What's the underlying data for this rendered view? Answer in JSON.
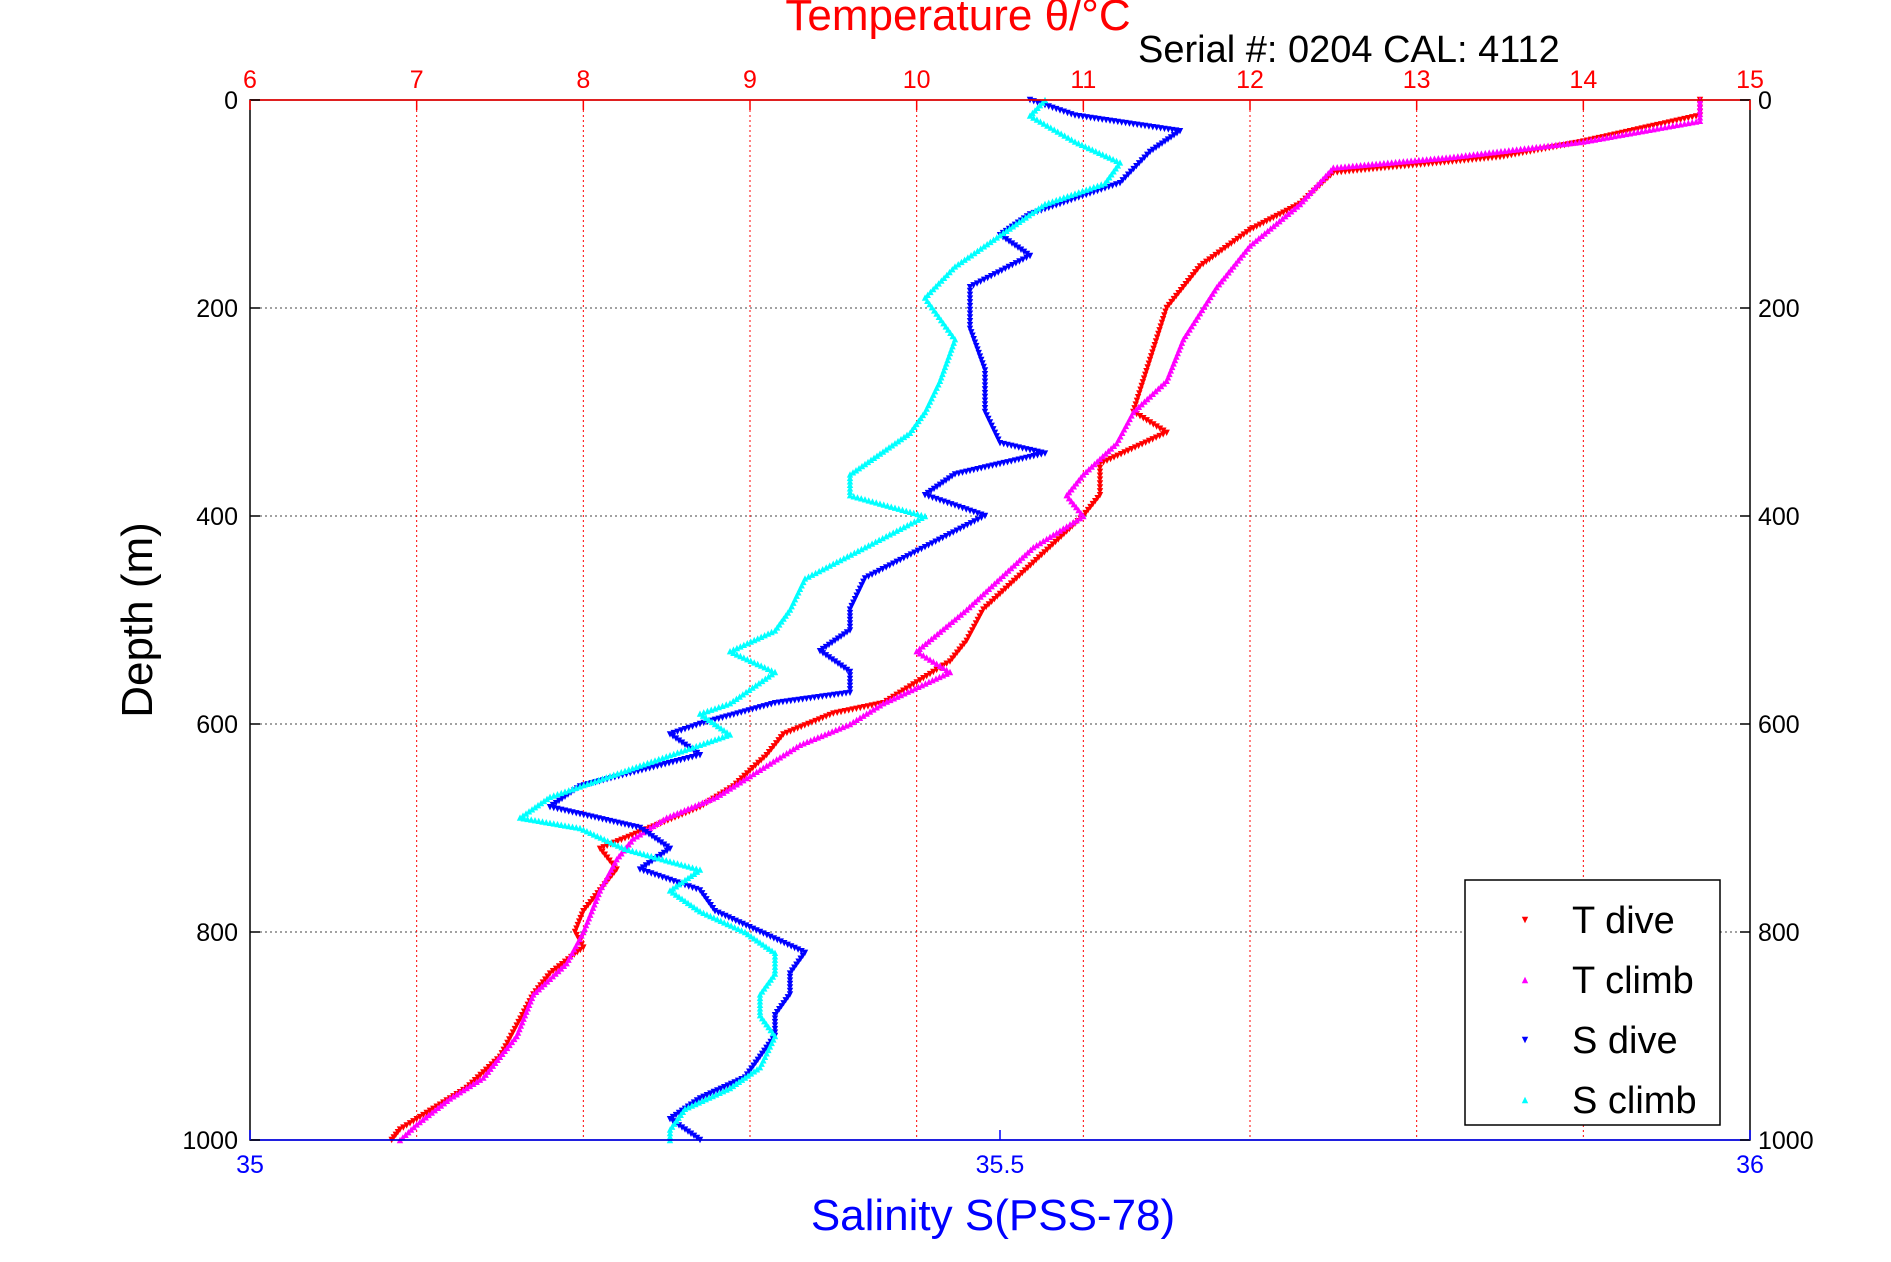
{
  "chart_data": {
    "type": "scatter",
    "title": "Temperature θ/°C",
    "annotation": "Serial #: 0204  CAL: 4112",
    "ylabel": "Depth (m)",
    "xlabel_bottom": "Salinity S(PSS-78)",
    "y_ticks": [
      "0",
      "200",
      "400",
      "600",
      "800",
      "1000"
    ],
    "x_top_ticks": [
      "6",
      "7",
      "8",
      "9",
      "10",
      "11",
      "12",
      "13",
      "14",
      "15"
    ],
    "x_bottom_ticks": [
      "35",
      "35.5",
      "36"
    ],
    "ylim": [
      0,
      1000
    ],
    "y_reversed": true,
    "x_top_lim": [
      6,
      15
    ],
    "x_bottom_lim": [
      35,
      36
    ],
    "grid": true,
    "legend_position": "bottom-right",
    "colors": {
      "temperature_axis": "#ff0000",
      "salinity_axis": "#0000ff"
    },
    "series": [
      {
        "name": "T dive",
        "axis": "top",
        "color": "#ff0000",
        "points": [
          [
            14.7,
            0
          ],
          [
            14.7,
            15
          ],
          [
            14.0,
            40
          ],
          [
            13.5,
            55
          ],
          [
            12.5,
            70
          ],
          [
            12.3,
            100
          ],
          [
            12.0,
            125
          ],
          [
            11.7,
            160
          ],
          [
            11.5,
            200
          ],
          [
            11.4,
            250
          ],
          [
            11.3,
            300
          ],
          [
            11.5,
            320
          ],
          [
            11.1,
            350
          ],
          [
            11.1,
            380
          ],
          [
            11.0,
            400
          ],
          [
            10.8,
            430
          ],
          [
            10.6,
            460
          ],
          [
            10.4,
            490
          ],
          [
            10.3,
            520
          ],
          [
            10.2,
            540
          ],
          [
            10.0,
            560
          ],
          [
            9.8,
            580
          ],
          [
            9.5,
            590
          ],
          [
            9.2,
            610
          ],
          [
            9.1,
            630
          ],
          [
            8.9,
            660
          ],
          [
            8.7,
            680
          ],
          [
            8.4,
            700
          ],
          [
            8.1,
            720
          ],
          [
            8.2,
            740
          ],
          [
            8.1,
            760
          ],
          [
            8.0,
            780
          ],
          [
            7.95,
            800
          ],
          [
            8.0,
            815
          ],
          [
            7.8,
            840
          ],
          [
            7.7,
            860
          ],
          [
            7.6,
            890
          ],
          [
            7.5,
            920
          ],
          [
            7.3,
            950
          ],
          [
            7.1,
            970
          ],
          [
            6.9,
            990
          ],
          [
            6.85,
            1000
          ]
        ]
      },
      {
        "name": "T climb",
        "axis": "top",
        "color": "#ff00ff",
        "points": [
          [
            14.7,
            0
          ],
          [
            14.7,
            20
          ],
          [
            14.0,
            40
          ],
          [
            13.2,
            55
          ],
          [
            12.5,
            65
          ],
          [
            12.3,
            100
          ],
          [
            12.0,
            140
          ],
          [
            11.8,
            180
          ],
          [
            11.6,
            230
          ],
          [
            11.5,
            270
          ],
          [
            11.3,
            300
          ],
          [
            11.2,
            330
          ],
          [
            11.0,
            360
          ],
          [
            10.9,
            380
          ],
          [
            11.0,
            400
          ],
          [
            10.7,
            430
          ],
          [
            10.5,
            460
          ],
          [
            10.3,
            490
          ],
          [
            10.0,
            530
          ],
          [
            10.2,
            550
          ],
          [
            9.8,
            580
          ],
          [
            9.6,
            600
          ],
          [
            9.3,
            620
          ],
          [
            9.0,
            650
          ],
          [
            8.8,
            670
          ],
          [
            8.5,
            690
          ],
          [
            8.3,
            710
          ],
          [
            8.2,
            730
          ],
          [
            8.1,
            760
          ],
          [
            8.0,
            800
          ],
          [
            7.9,
            830
          ],
          [
            7.7,
            860
          ],
          [
            7.6,
            900
          ],
          [
            7.4,
            940
          ],
          [
            7.2,
            960
          ],
          [
            7.0,
            985
          ],
          [
            6.9,
            1000
          ]
        ]
      },
      {
        "name": "S dive",
        "axis": "bottom",
        "color": "#0000ff",
        "points": [
          [
            35.52,
            0
          ],
          [
            35.55,
            15
          ],
          [
            35.62,
            30
          ],
          [
            35.6,
            50
          ],
          [
            35.58,
            80
          ],
          [
            35.52,
            110
          ],
          [
            35.5,
            130
          ],
          [
            35.52,
            150
          ],
          [
            35.48,
            180
          ],
          [
            35.48,
            220
          ],
          [
            35.49,
            260
          ],
          [
            35.49,
            300
          ],
          [
            35.5,
            330
          ],
          [
            35.53,
            340
          ],
          [
            35.47,
            360
          ],
          [
            35.45,
            380
          ],
          [
            35.49,
            400
          ],
          [
            35.45,
            430
          ],
          [
            35.41,
            460
          ],
          [
            35.4,
            490
          ],
          [
            35.4,
            510
          ],
          [
            35.38,
            530
          ],
          [
            35.4,
            550
          ],
          [
            35.4,
            570
          ],
          [
            35.35,
            580
          ],
          [
            35.3,
            600
          ],
          [
            35.28,
            610
          ],
          [
            35.3,
            630
          ],
          [
            35.22,
            660
          ],
          [
            35.2,
            680
          ],
          [
            35.26,
            700
          ],
          [
            35.28,
            720
          ],
          [
            35.26,
            740
          ],
          [
            35.3,
            760
          ],
          [
            35.31,
            780
          ],
          [
            35.34,
            800
          ],
          [
            35.37,
            820
          ],
          [
            35.36,
            840
          ],
          [
            35.36,
            860
          ],
          [
            35.35,
            880
          ],
          [
            35.35,
            900
          ],
          [
            35.34,
            920
          ],
          [
            35.33,
            940
          ],
          [
            35.3,
            960
          ],
          [
            35.28,
            980
          ],
          [
            35.3,
            1000
          ]
        ]
      },
      {
        "name": "S climb",
        "axis": "bottom",
        "color": "#00ffff",
        "points": [
          [
            35.53,
            0
          ],
          [
            35.52,
            15
          ],
          [
            35.55,
            40
          ],
          [
            35.58,
            60
          ],
          [
            35.57,
            80
          ],
          [
            35.53,
            100
          ],
          [
            35.5,
            130
          ],
          [
            35.47,
            160
          ],
          [
            35.45,
            190
          ],
          [
            35.47,
            230
          ],
          [
            35.46,
            270
          ],
          [
            35.45,
            300
          ],
          [
            35.44,
            320
          ],
          [
            35.42,
            340
          ],
          [
            35.4,
            360
          ],
          [
            35.4,
            380
          ],
          [
            35.45,
            400
          ],
          [
            35.41,
            430
          ],
          [
            35.37,
            460
          ],
          [
            35.36,
            490
          ],
          [
            35.35,
            510
          ],
          [
            35.32,
            530
          ],
          [
            35.35,
            550
          ],
          [
            35.32,
            580
          ],
          [
            35.3,
            590
          ],
          [
            35.32,
            610
          ],
          [
            35.28,
            630
          ],
          [
            35.24,
            650
          ],
          [
            35.2,
            670
          ],
          [
            35.18,
            690
          ],
          [
            35.22,
            700
          ],
          [
            35.25,
            720
          ],
          [
            35.3,
            740
          ],
          [
            35.28,
            760
          ],
          [
            35.3,
            780
          ],
          [
            35.33,
            800
          ],
          [
            35.35,
            820
          ],
          [
            35.35,
            840
          ],
          [
            35.34,
            860
          ],
          [
            35.34,
            880
          ],
          [
            35.35,
            900
          ],
          [
            35.34,
            930
          ],
          [
            35.32,
            950
          ],
          [
            35.29,
            970
          ],
          [
            35.28,
            990
          ],
          [
            35.28,
            1000
          ]
        ]
      }
    ],
    "legend": [
      "T dive",
      "T climb",
      "S dive",
      "S climb"
    ]
  }
}
